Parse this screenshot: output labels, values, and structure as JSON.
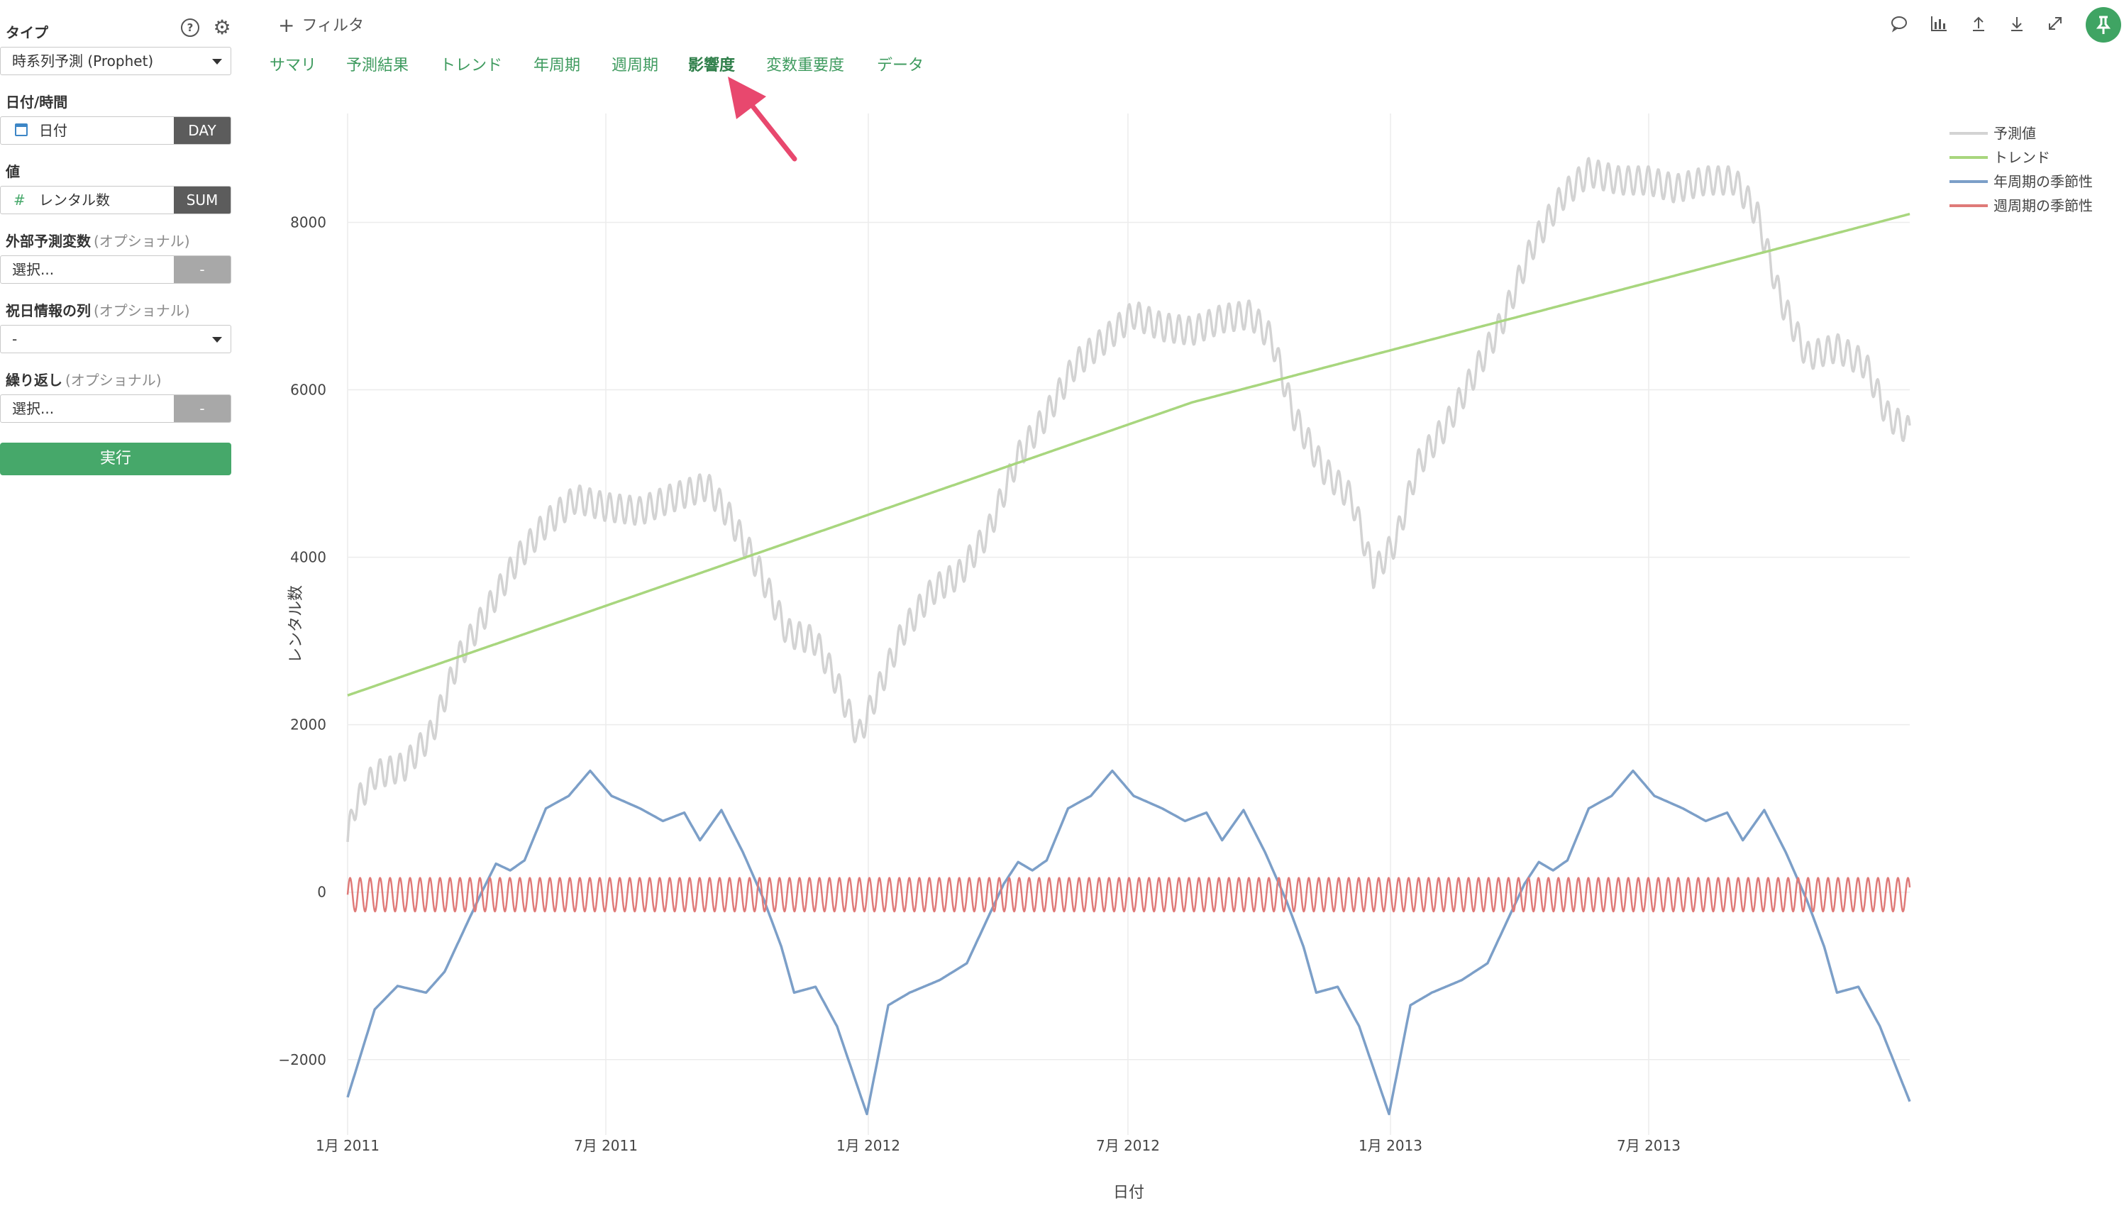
{
  "sidebar": {
    "type_label": "タイプ",
    "type_value": "時系列予測 (Prophet)",
    "date_label": "日付/時間",
    "date_field": "日付",
    "date_agg": "DAY",
    "value_label": "値",
    "value_field": "レンタル数",
    "value_agg": "SUM",
    "external_label": "外部予測変数",
    "external_opt": "(オプショナル)",
    "external_value": "選択...",
    "external_agg": "-",
    "holiday_label": "祝日情報の列",
    "holiday_opt": "(オプショナル)",
    "holiday_value": "-",
    "repeat_label": "繰り返し",
    "repeat_opt": "(オプショナル)",
    "repeat_value": "選択...",
    "repeat_agg": "-",
    "run_label": "実行"
  },
  "header": {
    "filter_label": "フィルタ",
    "tabs": [
      "サマリ",
      "予測結果",
      "トレンド",
      "年周期",
      "週周期",
      "影響度",
      "変数重要度",
      "データ"
    ],
    "active_tab": "影響度"
  },
  "colors": {
    "accent": "#3f9b5f",
    "run_button": "#46a86a",
    "arrow": "#e8486e",
    "forecast": "#d3d3d3",
    "trend": "#a8d67e",
    "yearly": "#7c9fc8",
    "weekly": "#df7a78"
  },
  "chart_data": {
    "type": "line",
    "xlabel": "日付",
    "ylabel": "レンタル数",
    "x_range": [
      "2011-01-01",
      "2013-12-31"
    ],
    "ylim": [
      -2900,
      9300
    ],
    "y_ticks": [
      -2000,
      0,
      2000,
      4000,
      6000,
      8000
    ],
    "y_tick_labels": [
      "−2000",
      "0",
      "2000",
      "4000",
      "6000",
      "8000"
    ],
    "x_ticks": [
      "2011-01-01",
      "2011-07-01",
      "2012-01-01",
      "2012-07-01",
      "2013-01-01",
      "2013-07-01"
    ],
    "x_tick_labels": [
      "1月 2011",
      "7月 2011",
      "1月 2012",
      "7月 2012",
      "1月 2013",
      "7月 2013"
    ],
    "grid": true,
    "legend_position": "top-right",
    "series": [
      {
        "name": "予測値",
        "color": "#d3d3d3",
        "x": [
          "2011-01-01",
          "2011-01-05",
          "2011-01-20",
          "2011-02-10",
          "2011-03-01",
          "2011-03-20",
          "2011-04-10",
          "2011-05-01",
          "2011-05-20",
          "2011-06-10",
          "2011-07-01",
          "2011-07-25",
          "2011-08-15",
          "2011-09-10",
          "2011-09-25",
          "2011-10-15",
          "2011-11-05",
          "2011-11-25",
          "2011-12-10",
          "2011-12-25",
          "2012-01-05",
          "2012-01-25",
          "2012-02-15",
          "2012-03-05",
          "2012-03-25",
          "2012-04-15",
          "2012-05-05",
          "2012-05-25",
          "2012-06-15",
          "2012-07-05",
          "2012-07-25",
          "2012-08-15",
          "2012-09-05",
          "2012-09-25",
          "2012-10-10",
          "2012-10-25",
          "2012-11-15",
          "2012-12-05",
          "2012-12-20",
          "2013-01-05",
          "2013-01-20",
          "2013-02-10",
          "2013-03-01",
          "2013-03-20",
          "2013-04-10",
          "2013-05-01",
          "2013-05-20",
          "2013-06-10",
          "2013-07-01",
          "2013-07-20",
          "2013-08-10",
          "2013-08-30",
          "2013-09-15",
          "2013-10-01",
          "2013-10-20",
          "2013-11-10",
          "2013-11-30",
          "2013-12-15",
          "2013-12-31"
        ],
        "values": [
          600,
          1000,
          1400,
          1500,
          1900,
          2800,
          3400,
          4000,
          4400,
          4700,
          4600,
          4550,
          4700,
          4850,
          4500,
          3900,
          3100,
          3000,
          2500,
          1850,
          2300,
          3100,
          3600,
          3800,
          4300,
          5200,
          5700,
          6300,
          6600,
          6900,
          6750,
          6700,
          6850,
          6900,
          6600,
          5700,
          5050,
          4700,
          3800,
          4200,
          5100,
          5600,
          6200,
          6800,
          7700,
          8300,
          8600,
          8500,
          8500,
          8400,
          8500,
          8500,
          8100,
          7100,
          6400,
          6500,
          6300,
          5700,
          5500
        ]
      },
      {
        "name": "トレンド",
        "color": "#a8d67e",
        "x": [
          "2011-01-01",
          "2012-08-15",
          "2013-12-31"
        ],
        "values": [
          2350,
          5850,
          8100
        ]
      },
      {
        "name": "年周期の季節性",
        "color": "#7c9fc8",
        "x": [
          "2011-01-01",
          "2011-01-20",
          "2011-02-05",
          "2011-02-25",
          "2011-03-10",
          "2011-03-25",
          "2011-04-05",
          "2011-04-15",
          "2011-04-25",
          "2011-05-05",
          "2011-05-20",
          "2011-06-05",
          "2011-06-20",
          "2011-07-05",
          "2011-07-25",
          "2011-08-10",
          "2011-08-25",
          "2011-09-05",
          "2011-09-20",
          "2011-10-05",
          "2011-10-20",
          "2011-11-01",
          "2011-11-10",
          "2011-11-25",
          "2011-12-10",
          "2011-12-31",
          "2012-01-15",
          "2012-01-30",
          "2012-02-20",
          "2012-03-10",
          "2012-03-25",
          "2012-04-05",
          "2012-04-15",
          "2012-04-25",
          "2012-05-05",
          "2012-05-20",
          "2012-06-05",
          "2012-06-20",
          "2012-07-05",
          "2012-07-25",
          "2012-08-10",
          "2012-08-25",
          "2012-09-05",
          "2012-09-20",
          "2012-10-05",
          "2012-10-20",
          "2012-11-01",
          "2012-11-10",
          "2012-11-25",
          "2012-12-10",
          "2012-12-31",
          "2013-01-15",
          "2013-01-30",
          "2013-02-20",
          "2013-03-10",
          "2013-03-25",
          "2013-04-05",
          "2013-04-15",
          "2013-04-25",
          "2013-05-05",
          "2013-05-20",
          "2013-06-05",
          "2013-06-20",
          "2013-07-05",
          "2013-07-25",
          "2013-08-10",
          "2013-08-25",
          "2013-09-05",
          "2013-09-20",
          "2013-10-05",
          "2013-10-20",
          "2013-11-01",
          "2013-11-10",
          "2013-11-25",
          "2013-12-10",
          "2013-12-31"
        ],
        "values": [
          -2450,
          -1400,
          -1120,
          -1200,
          -950,
          -400,
          0,
          340,
          260,
          380,
          1000,
          1150,
          1450,
          1150,
          1000,
          850,
          950,
          620,
          980,
          480,
          -100,
          -650,
          -1200,
          -1130,
          -1600,
          -2650,
          -1350,
          -1200,
          -1050,
          -850,
          -300,
          100,
          360,
          260,
          380,
          1000,
          1150,
          1450,
          1150,
          1000,
          850,
          950,
          620,
          980,
          480,
          -100,
          -650,
          -1200,
          -1130,
          -1600,
          -2650,
          -1350,
          -1200,
          -1050,
          -850,
          -300,
          100,
          360,
          260,
          380,
          1000,
          1150,
          1450,
          1150,
          1000,
          850,
          950,
          620,
          980,
          480,
          -100,
          -650,
          -1200,
          -1130,
          -1600,
          -2500
        ]
      },
      {
        "name": "週周期の季節性",
        "color": "#df7a78",
        "x": [
          "2011-01-01",
          "2013-12-31"
        ],
        "values": [
          -230,
          170
        ],
        "note_period_days": 7
      }
    ]
  }
}
